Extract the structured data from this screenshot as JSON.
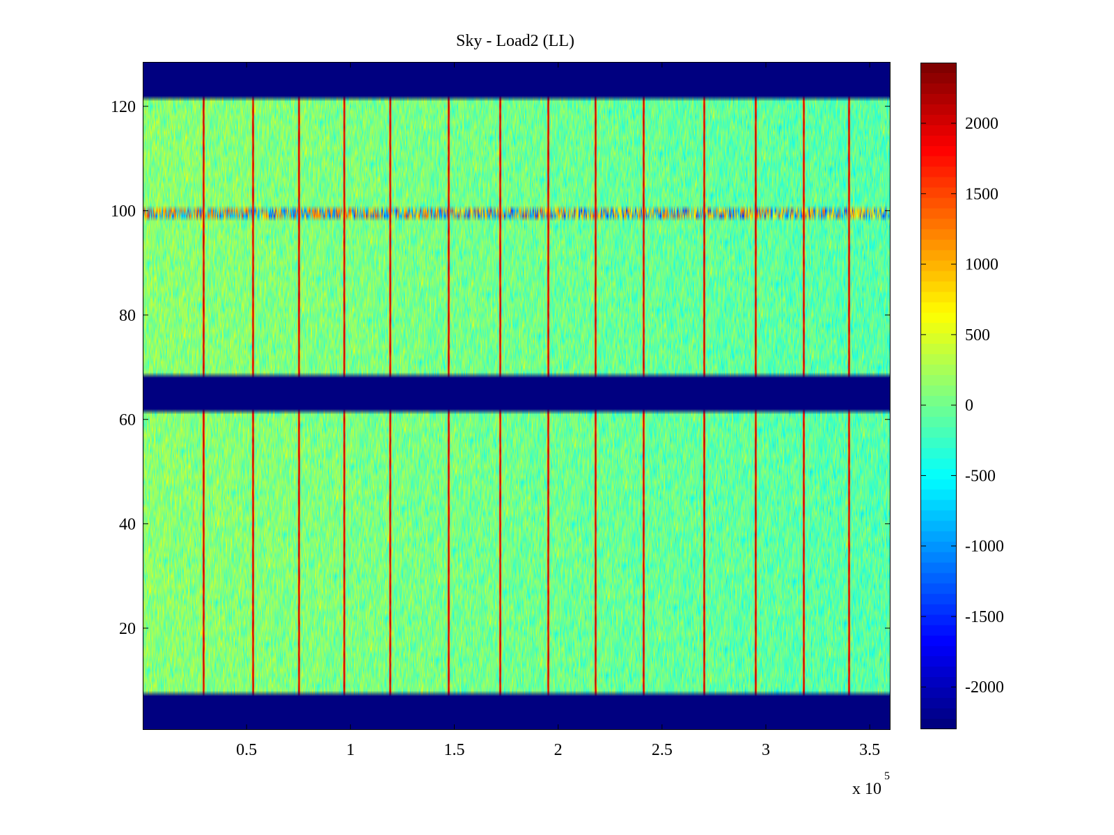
{
  "chart_data": {
    "type": "heatmap",
    "title": "Sky - Load2 (LL)",
    "xlabel": "",
    "ylabel": "",
    "x_multiplier_label": {
      "base": "x 10",
      "exponent": "5"
    },
    "xlim": [
      0.0,
      3.6
    ],
    "ylim": [
      0.5,
      128.5
    ],
    "x_ticks": [
      0.5,
      1,
      1.5,
      2,
      2.5,
      3,
      3.5
    ],
    "x_tick_labels": [
      "0.5",
      "1",
      "1.5",
      "2",
      "2.5",
      "3",
      "3.5"
    ],
    "y_ticks": [
      20,
      40,
      60,
      80,
      100,
      120
    ],
    "y_tick_labels": [
      "20",
      "40",
      "60",
      "80",
      "100",
      "120"
    ],
    "colormap": "jet",
    "colorbar": {
      "clim": [
        -2300,
        2430
      ],
      "ticks": [
        -2000,
        -1500,
        -1000,
        -500,
        0,
        500,
        1000,
        1500,
        2000
      ],
      "tick_labels": [
        "-2000",
        "-1500",
        "-1000",
        "-500",
        "0",
        "500",
        "1000",
        "1500",
        "2000"
      ]
    },
    "masked_row_bands": [
      [
        0.5,
        7.5
      ],
      [
        61.5,
        68.5
      ],
      [
        121.5,
        128.5
      ]
    ],
    "masked_value": -2300,
    "anomalous_row_band": [
      98.5,
      100.5
    ],
    "vertical_spike_columns_x": [
      0.29,
      0.53,
      0.75,
      0.97,
      1.19,
      1.47,
      1.72,
      1.95,
      2.18,
      2.41,
      2.7,
      2.95,
      3.18,
      3.4
    ],
    "spike_value": 2400,
    "background_value_range": [
      -700,
      700
    ],
    "background_trend": "slightly higher on left, lower toward right"
  }
}
